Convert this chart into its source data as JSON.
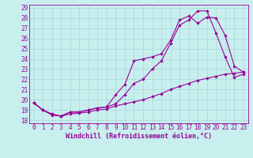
{
  "xlabel": "Windchill (Refroidissement éolien,°C)",
  "background_color": "#c8eeee",
  "grid_color": "#a8d8d8",
  "line_color": "#990099",
  "xlim": [
    -0.5,
    23.5
  ],
  "ylim": [
    17.7,
    29.3
  ],
  "xticks": [
    0,
    1,
    2,
    3,
    4,
    5,
    6,
    7,
    8,
    9,
    10,
    11,
    12,
    13,
    14,
    15,
    16,
    17,
    18,
    19,
    20,
    21,
    22,
    23
  ],
  "yticks": [
    18,
    19,
    20,
    21,
    22,
    23,
    24,
    25,
    26,
    27,
    28,
    29
  ],
  "line1_x": [
    0,
    1,
    2,
    3,
    4,
    5,
    6,
    7,
    8,
    9,
    10,
    11,
    12,
    13,
    14,
    15,
    16,
    17,
    18,
    19,
    20,
    21,
    22,
    23
  ],
  "line1_y": [
    19.7,
    19.0,
    18.6,
    18.4,
    18.8,
    18.8,
    19.0,
    19.2,
    19.3,
    20.5,
    21.5,
    23.8,
    24.0,
    24.2,
    24.5,
    25.8,
    27.8,
    28.2,
    27.5,
    28.1,
    28.0,
    26.3,
    23.3,
    22.7
  ],
  "line2_x": [
    0,
    1,
    2,
    3,
    4,
    5,
    6,
    7,
    8,
    9,
    10,
    11,
    12,
    13,
    14,
    15,
    16,
    17,
    18,
    19,
    20,
    21,
    22,
    23
  ],
  "line2_y": [
    19.7,
    19.0,
    18.6,
    18.4,
    18.8,
    18.8,
    19.0,
    19.2,
    19.3,
    19.6,
    20.5,
    21.6,
    22.0,
    23.0,
    23.8,
    25.5,
    27.3,
    27.8,
    28.7,
    28.7,
    26.5,
    24.2,
    22.2,
    22.5
  ],
  "line3_x": [
    0,
    1,
    2,
    3,
    4,
    5,
    6,
    7,
    8,
    9,
    10,
    11,
    12,
    13,
    14,
    15,
    16,
    17,
    18,
    19,
    20,
    21,
    22,
    23
  ],
  "line3_y": [
    19.7,
    19.0,
    18.5,
    18.4,
    18.6,
    18.7,
    18.8,
    19.0,
    19.1,
    19.4,
    19.6,
    19.8,
    20.0,
    20.3,
    20.6,
    21.0,
    21.3,
    21.6,
    21.9,
    22.1,
    22.3,
    22.5,
    22.6,
    22.7
  ],
  "tick_fontsize": 5.5,
  "xlabel_fontsize": 6.0,
  "linewidth": 0.8,
  "markersize": 2.2
}
